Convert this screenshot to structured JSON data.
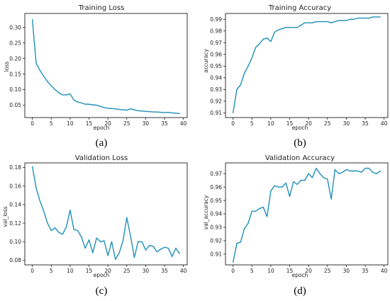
{
  "colors": {
    "line": "#1f8fb8"
  },
  "chart_data": [
    {
      "id": "a",
      "type": "line",
      "title": "Training Loss",
      "xlabel": "epoch",
      "ylabel": "loss",
      "caption": "(a)",
      "xlim": [
        -2,
        41
      ],
      "ylim": [
        0.01,
        0.345
      ],
      "xticks": [
        0,
        5,
        10,
        15,
        20,
        25,
        30,
        35,
        40
      ],
      "yticks": [
        0.05,
        0.1,
        0.15,
        0.2,
        0.25,
        0.3
      ],
      "ytick_labels": [
        "0.05",
        "0.10",
        "0.15",
        "0.20",
        "0.25",
        "0.30"
      ],
      "grid": false,
      "x": [
        0,
        1,
        2,
        3,
        4,
        5,
        6,
        7,
        8,
        9,
        10,
        11,
        12,
        13,
        14,
        15,
        16,
        17,
        18,
        19,
        20,
        21,
        22,
        23,
        24,
        25,
        26,
        27,
        28,
        29,
        30,
        31,
        32,
        33,
        34,
        35,
        36,
        37,
        38,
        39
      ],
      "values": [
        0.325,
        0.185,
        0.162,
        0.143,
        0.126,
        0.112,
        0.1,
        0.09,
        0.083,
        0.083,
        0.086,
        0.066,
        0.06,
        0.057,
        0.053,
        0.053,
        0.051,
        0.05,
        0.046,
        0.042,
        0.04,
        0.039,
        0.038,
        0.036,
        0.035,
        0.034,
        0.038,
        0.035,
        0.032,
        0.031,
        0.03,
        0.029,
        0.028,
        0.028,
        0.027,
        0.026,
        0.027,
        0.025,
        0.024,
        0.023
      ]
    },
    {
      "id": "b",
      "type": "line",
      "title": "Training Accuracy",
      "xlabel": "epoch",
      "ylabel": "accuracy",
      "caption": "(b)",
      "xlim": [
        -2,
        41
      ],
      "ylim": [
        0.906,
        0.995
      ],
      "xticks": [
        0,
        5,
        10,
        15,
        20,
        25,
        30,
        35,
        40
      ],
      "yticks": [
        0.91,
        0.92,
        0.93,
        0.94,
        0.95,
        0.96,
        0.97,
        0.98,
        0.99
      ],
      "ytick_labels": [
        "0.91",
        "0.92",
        "0.93",
        "0.94",
        "0.95",
        "0.96",
        "0.97",
        "0.98",
        "0.99"
      ],
      "grid": false,
      "x": [
        0,
        1,
        2,
        3,
        4,
        5,
        6,
        7,
        8,
        9,
        10,
        11,
        12,
        13,
        14,
        15,
        16,
        17,
        18,
        19,
        20,
        21,
        22,
        23,
        24,
        25,
        26,
        27,
        28,
        29,
        30,
        31,
        32,
        33,
        34,
        35,
        36,
        37,
        38,
        39
      ],
      "values": [
        0.91,
        0.93,
        0.934,
        0.944,
        0.95,
        0.957,
        0.966,
        0.969,
        0.973,
        0.974,
        0.971,
        0.979,
        0.981,
        0.982,
        0.983,
        0.983,
        0.983,
        0.983,
        0.985,
        0.987,
        0.987,
        0.987,
        0.988,
        0.988,
        0.988,
        0.988,
        0.987,
        0.988,
        0.989,
        0.989,
        0.989,
        0.99,
        0.99,
        0.991,
        0.991,
        0.991,
        0.991,
        0.992,
        0.992,
        0.992
      ]
    },
    {
      "id": "c",
      "type": "line",
      "title": "Validation Loss",
      "xlabel": "epoch",
      "ylabel": "val_loss",
      "caption": "(c)",
      "xlim": [
        -2,
        41
      ],
      "ylim": [
        0.075,
        0.185
      ],
      "xticks": [
        0,
        5,
        10,
        15,
        20,
        25,
        30,
        35,
        40
      ],
      "yticks": [
        0.08,
        0.1,
        0.12,
        0.14,
        0.16,
        0.18
      ],
      "ytick_labels": [
        "0.08",
        "0.10",
        "0.12",
        "0.14",
        "0.16",
        "0.18"
      ],
      "grid": false,
      "x": [
        0,
        1,
        2,
        3,
        4,
        5,
        6,
        7,
        8,
        9,
        10,
        11,
        12,
        13,
        14,
        15,
        16,
        17,
        18,
        19,
        20,
        21,
        22,
        23,
        24,
        25,
        26,
        27,
        28,
        29,
        30,
        31,
        32,
        33,
        34,
        35,
        36,
        37,
        38,
        39
      ],
      "values": [
        0.181,
        0.158,
        0.144,
        0.133,
        0.12,
        0.112,
        0.115,
        0.11,
        0.108,
        0.116,
        0.134,
        0.113,
        0.112,
        0.105,
        0.093,
        0.102,
        0.088,
        0.104,
        0.1,
        0.101,
        0.085,
        0.1,
        0.081,
        0.088,
        0.101,
        0.126,
        0.106,
        0.083,
        0.1,
        0.1,
        0.091,
        0.096,
        0.095,
        0.089,
        0.092,
        0.094,
        0.093,
        0.084,
        0.093,
        0.087
      ]
    },
    {
      "id": "d",
      "type": "line",
      "title": "Validation Accuracy",
      "xlabel": "epoch",
      "ylabel": "val_accuracy",
      "caption": "(d)",
      "xlim": [
        -2,
        41
      ],
      "ylim": [
        0.902,
        0.978
      ],
      "xticks": [
        0,
        5,
        10,
        15,
        20,
        25,
        30,
        35,
        40
      ],
      "yticks": [
        0.91,
        0.92,
        0.93,
        0.94,
        0.95,
        0.96,
        0.97
      ],
      "ytick_labels": [
        "0.91",
        "0.92",
        "0.93",
        "0.94",
        "0.95",
        "0.96",
        "0.97"
      ],
      "grid": false,
      "x": [
        0,
        1,
        2,
        3,
        4,
        5,
        6,
        7,
        8,
        9,
        10,
        11,
        12,
        13,
        14,
        15,
        16,
        17,
        18,
        19,
        20,
        21,
        22,
        23,
        24,
        25,
        26,
        27,
        28,
        29,
        30,
        31,
        32,
        33,
        34,
        35,
        36,
        37,
        38,
        39
      ],
      "values": [
        0.904,
        0.918,
        0.919,
        0.929,
        0.933,
        0.942,
        0.942,
        0.944,
        0.945,
        0.938,
        0.957,
        0.961,
        0.96,
        0.96,
        0.963,
        0.953,
        0.964,
        0.962,
        0.965,
        0.965,
        0.97,
        0.967,
        0.974,
        0.97,
        0.967,
        0.966,
        0.951,
        0.973,
        0.97,
        0.971,
        0.973,
        0.972,
        0.972,
        0.972,
        0.971,
        0.974,
        0.974,
        0.971,
        0.97,
        0.972
      ]
    }
  ]
}
